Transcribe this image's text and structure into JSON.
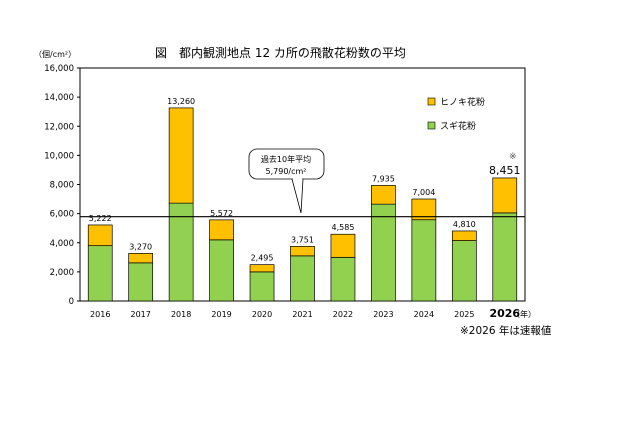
{
  "chart_data": {
    "type": "bar",
    "stacked": true,
    "title": "図　都内観測地点 12 カ所の飛散花粉数の平均",
    "y_unit_label": "（個/cm²）",
    "x_unit_label": "（年）",
    "categories": [
      "2016",
      "2017",
      "2018",
      "2019",
      "2020",
      "2021",
      "2022",
      "2023",
      "2024",
      "2025",
      "2026"
    ],
    "series": [
      {
        "name": "スギ花粉",
        "color": "#92d050",
        "values": [
          3800,
          2620,
          6720,
          4200,
          2000,
          3100,
          3000,
          6650,
          5580,
          4150,
          6050
        ]
      },
      {
        "name": "ヒノキ花粉",
        "color": "#ffc000",
        "values": [
          1422,
          650,
          6540,
          1372,
          495,
          651,
          1585,
          1285,
          1424,
          660,
          2401
        ]
      }
    ],
    "totals": [
      "5,222",
      "3,270",
      "13,260",
      "5,572",
      "2,495",
      "3,751",
      "4,585",
      "7,935",
      "7,004",
      "4,810",
      "8,451"
    ],
    "highlight_category": "2026",
    "highlight_mark": "※",
    "ylim": [
      0,
      16000
    ],
    "yticks": [
      "0",
      "2,000",
      "4,000",
      "6,000",
      "8,000",
      "10,000",
      "12,000",
      "14,000",
      "16,000"
    ],
    "average_line": {
      "value": 5790,
      "label_line1": "過去10年平均",
      "label_line2": "5,790/cm²"
    },
    "legend_position": "top-right",
    "footnote": "※2026 年は速報値"
  }
}
